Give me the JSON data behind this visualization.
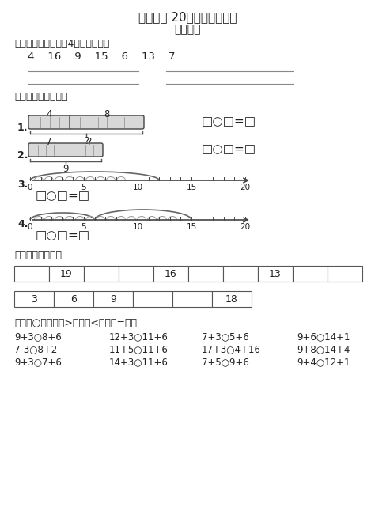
{
  "title1": "第八单元 20以内的进位加法",
  "title2": "综合练习",
  "section1_label": "一、根据下面各数写4道加法算式。",
  "section1_numbers": "4    16    9    15    6    13    7",
  "section2_label": "二、看图列式计算。",
  "section3_label": "三、按规律填数。",
  "section4_label": "四、在○里填上「>」、「<」或「=」。",
  "table1_cells": [
    "",
    "19",
    "",
    "",
    "16",
    "",
    "",
    "13",
    "",
    ""
  ],
  "table1_cols": 10,
  "table2_cells": [
    "3",
    "6",
    "9",
    "",
    "",
    "18"
  ],
  "table2_cols": 6,
  "compare_rows": [
    [
      "9+3○8+6",
      "12+3○11+6",
      "7+3○5+6",
      "9+6○14+1"
    ],
    [
      "7-3○8+2",
      "11+5○11+6",
      "17+3○4+16",
      "9+8○14+4"
    ],
    [
      "9+3○7+6",
      "14+3○11+6",
      "7+5○9+6",
      "9+4○12+1"
    ]
  ],
  "bg_color": "#ffffff",
  "text_color": "#222222",
  "line_color": "#555555"
}
